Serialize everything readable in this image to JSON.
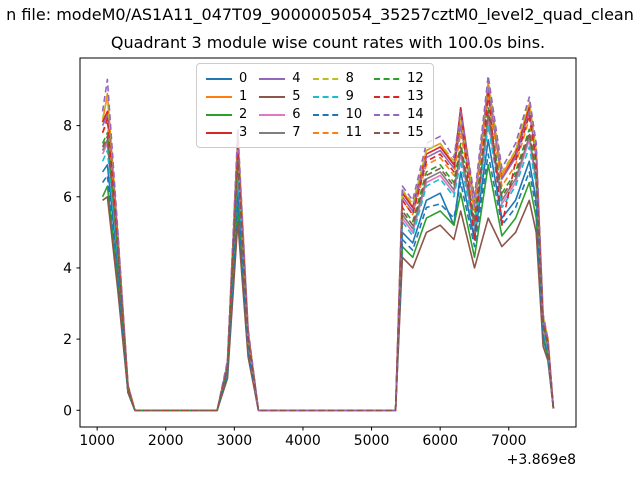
{
  "figure": {
    "suptitle": "n file: modeM0/AS1A11_047T09_9000005054_35257cztM0_level2_quad_clean"
  },
  "chart_data": {
    "type": "line",
    "title": "Quadrant 3 module wise count rates with 100.0s bins.",
    "xlabel": "",
    "ylabel": "",
    "x_axis_offset_label": "+3.869e8",
    "xticks": [
      1000,
      2000,
      3000,
      4000,
      5000,
      6000,
      7000
    ],
    "yticks": [
      0,
      2,
      4,
      6,
      8
    ],
    "xlim": [
      750,
      7980
    ],
    "ylim": [
      -0.47,
      9.9
    ],
    "grid": false,
    "legend_position": "upper-center",
    "legend_ncols": 4,
    "x": [
      1080,
      1150,
      1300,
      1450,
      1550,
      2200,
      2750,
      2900,
      3050,
      3200,
      3350,
      4000,
      4700,
      5350,
      5450,
      5600,
      5800,
      6000,
      6200,
      6300,
      6500,
      6700,
      6900,
      7100,
      7300,
      7400,
      7500,
      7570,
      7650
    ],
    "series": [
      {
        "name": "0",
        "color": "#1f77b4",
        "linestyle": "solid",
        "values": [
          6.7,
          6.9,
          4.1,
          0.5,
          0,
          0,
          0,
          1.1,
          6.3,
          1.8,
          0,
          0,
          0,
          0,
          5.0,
          4.7,
          5.9,
          6.1,
          5.2,
          6.7,
          4.8,
          7.6,
          5.4,
          5.9,
          7.0,
          5.9,
          2.2,
          1.6,
          0.05
        ]
      },
      {
        "name": "1",
        "color": "#ff7f0e",
        "linestyle": "solid",
        "values": [
          8.1,
          8.9,
          5.0,
          0.7,
          0,
          0,
          0,
          1.3,
          7.7,
          2.2,
          0,
          0,
          0,
          0,
          6.2,
          5.7,
          7.3,
          7.5,
          6.9,
          8.1,
          5.8,
          9.2,
          6.6,
          7.3,
          8.6,
          7.3,
          2.6,
          2.0,
          0.05
        ]
      },
      {
        "name": "2",
        "color": "#2ca02c",
        "linestyle": "solid",
        "values": [
          6.0,
          6.3,
          3.7,
          0.5,
          0,
          0,
          0,
          1.0,
          5.7,
          1.6,
          0,
          0,
          0,
          0,
          4.6,
          4.3,
          5.4,
          5.6,
          5.2,
          6.1,
          4.3,
          6.9,
          4.9,
          5.4,
          6.4,
          5.4,
          2.0,
          1.5,
          0.05
        ]
      },
      {
        "name": "3",
        "color": "#d62728",
        "linestyle": "solid",
        "values": [
          8.1,
          8.4,
          4.9,
          0.7,
          0,
          0,
          0,
          1.3,
          7.6,
          2.2,
          0,
          0,
          0,
          0,
          6.1,
          5.7,
          7.2,
          7.4,
          6.9,
          8.5,
          5.8,
          9.0,
          6.5,
          7.2,
          8.5,
          7.2,
          2.6,
          2.0,
          0.05
        ]
      },
      {
        "name": "4",
        "color": "#9467bd",
        "linestyle": "solid",
        "values": [
          8.0,
          8.3,
          4.9,
          0.6,
          0,
          0,
          0,
          1.3,
          7.6,
          2.2,
          0,
          0,
          0,
          0,
          6.0,
          5.6,
          7.1,
          7.3,
          6.8,
          8.0,
          5.7,
          9.1,
          6.5,
          7.1,
          8.4,
          7.1,
          2.6,
          1.9,
          0.05
        ]
      },
      {
        "name": "5",
        "color": "#8c564b",
        "linestyle": "solid",
        "values": [
          5.9,
          6.0,
          3.4,
          0.5,
          0,
          0,
          0,
          0.9,
          5.3,
          1.5,
          0,
          0,
          0,
          0,
          4.3,
          4.0,
          5.0,
          5.2,
          4.8,
          5.6,
          4.0,
          5.4,
          4.6,
          5.0,
          5.9,
          5.0,
          1.8,
          1.4,
          0.05
        ]
      },
      {
        "name": "6",
        "color": "#e377c2",
        "linestyle": "solid",
        "values": [
          7.2,
          7.5,
          4.4,
          0.6,
          0,
          0,
          0,
          1.2,
          6.8,
          1.9,
          0,
          0,
          0,
          0,
          5.4,
          5.0,
          6.4,
          6.6,
          6.1,
          7.2,
          5.1,
          8.1,
          5.8,
          6.4,
          7.6,
          6.4,
          2.3,
          1.7,
          0.05
        ]
      },
      {
        "name": "7",
        "color": "#7f7f7f",
        "linestyle": "solid",
        "values": [
          7.3,
          7.6,
          4.5,
          0.6,
          0,
          0,
          0,
          1.2,
          6.9,
          2.0,
          0,
          0,
          0,
          0,
          5.5,
          5.1,
          6.5,
          6.7,
          6.2,
          7.3,
          5.2,
          8.3,
          5.9,
          6.5,
          7.7,
          6.5,
          2.4,
          1.8,
          0.05
        ]
      },
      {
        "name": "8",
        "color": "#bcbd22",
        "linestyle": "dashed",
        "values": [
          8.2,
          8.8,
          5.0,
          0.7,
          0,
          0,
          0,
          1.3,
          7.8,
          2.2,
          0,
          0,
          0,
          0,
          6.2,
          5.8,
          7.3,
          7.5,
          7.0,
          8.2,
          5.9,
          9.3,
          6.7,
          7.3,
          8.7,
          7.3,
          2.7,
          2.0,
          0.05
        ]
      },
      {
        "name": "9",
        "color": "#17becf",
        "linestyle": "dashed",
        "values": [
          7.0,
          7.3,
          4.3,
          0.6,
          0,
          0,
          0,
          1.1,
          6.7,
          1.9,
          0,
          0,
          0,
          0,
          5.3,
          4.9,
          6.3,
          6.5,
          6.0,
          7.0,
          5.0,
          8.0,
          5.7,
          6.3,
          7.4,
          6.3,
          2.3,
          1.7,
          0.05
        ]
      },
      {
        "name": "10",
        "color": "#1f77b4",
        "linestyle": "dashed",
        "values": [
          6.4,
          6.6,
          3.9,
          0.5,
          0,
          0,
          0,
          1.0,
          6.0,
          1.7,
          0,
          0,
          0,
          0,
          4.8,
          4.5,
          5.7,
          5.8,
          5.4,
          6.4,
          4.6,
          7.2,
          5.2,
          5.7,
          6.7,
          5.7,
          2.1,
          1.5,
          0.05
        ]
      },
      {
        "name": "11",
        "color": "#ff7f0e",
        "linestyle": "dashed",
        "values": [
          7.8,
          8.1,
          4.7,
          0.6,
          0,
          0,
          0,
          1.3,
          7.4,
          2.1,
          0,
          0,
          0,
          0,
          5.9,
          5.5,
          6.9,
          7.1,
          6.6,
          7.8,
          5.6,
          8.8,
          6.3,
          6.9,
          8.2,
          6.9,
          2.5,
          1.9,
          0.05
        ]
      },
      {
        "name": "12",
        "color": "#2ca02c",
        "linestyle": "dashed",
        "values": [
          7.5,
          7.8,
          4.5,
          0.6,
          0,
          0,
          0,
          1.2,
          7.1,
          2.0,
          0,
          0,
          0,
          0,
          5.7,
          5.3,
          6.7,
          6.9,
          6.4,
          7.5,
          5.4,
          8.5,
          6.1,
          6.7,
          7.9,
          6.7,
          2.4,
          1.8,
          0.05
        ]
      },
      {
        "name": "13",
        "color": "#d62728",
        "linestyle": "dashed",
        "values": [
          7.8,
          8.2,
          4.8,
          0.6,
          0,
          0,
          0,
          1.3,
          7.4,
          2.1,
          0,
          0,
          0,
          0,
          5.9,
          5.5,
          7.0,
          7.2,
          6.7,
          8.5,
          4.8,
          8.9,
          5.2,
          7.0,
          8.3,
          7.0,
          2.5,
          1.9,
          0.05
        ]
      },
      {
        "name": "14",
        "color": "#9467bd",
        "linestyle": "dashed",
        "values": [
          8.4,
          9.3,
          5.1,
          0.7,
          0,
          0,
          0,
          1.4,
          7.9,
          2.3,
          0,
          0,
          0,
          0,
          6.3,
          5.9,
          7.5,
          7.7,
          7.1,
          8.4,
          6.0,
          9.4,
          6.8,
          7.5,
          8.8,
          7.5,
          2.7,
          2.0,
          0.05
        ]
      },
      {
        "name": "15",
        "color": "#8c564b",
        "linestyle": "dashed",
        "values": [
          7.4,
          7.7,
          4.5,
          0.6,
          0,
          0,
          0,
          1.2,
          7.0,
          2.0,
          0,
          0,
          0,
          0,
          5.6,
          5.2,
          6.6,
          6.8,
          6.3,
          7.4,
          5.3,
          8.4,
          6.0,
          6.6,
          7.8,
          6.6,
          2.4,
          1.8,
          0.05
        ]
      }
    ]
  }
}
